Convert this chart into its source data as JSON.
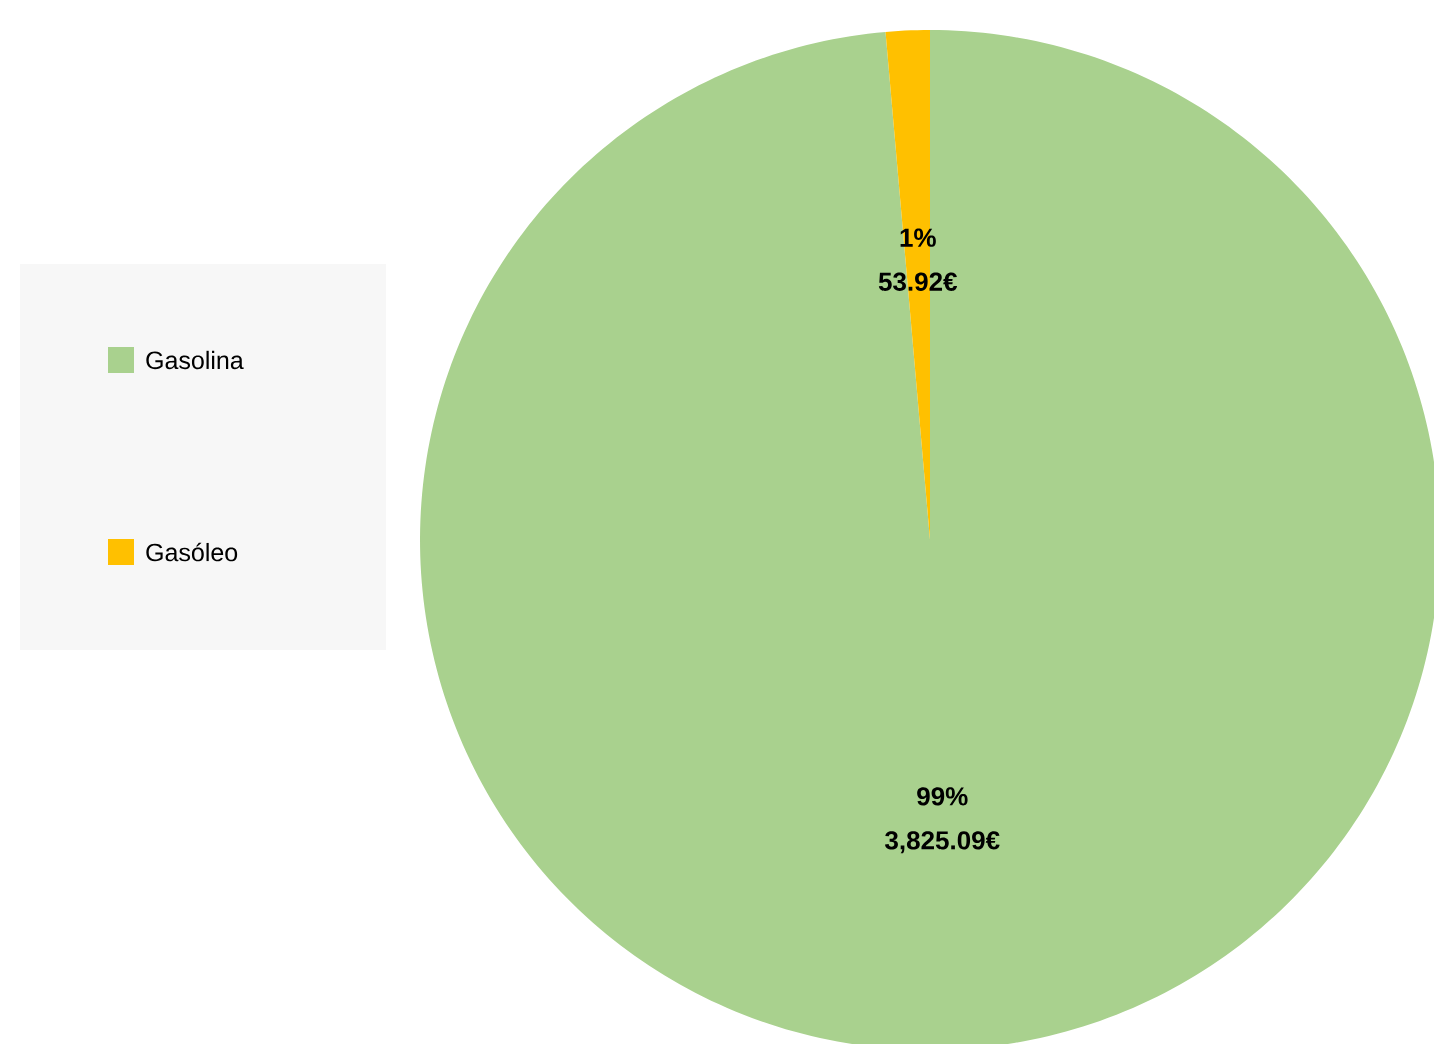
{
  "chart_data": {
    "type": "pie",
    "categories": [
      "Gasolina",
      "Gasóleo"
    ],
    "values": [
      3825.09,
      53.92
    ],
    "colors": [
      "#a9d18e",
      "#ffc000"
    ],
    "value_labels": [
      "3,825.09€",
      "53.92€"
    ],
    "annotations": [
      "99%",
      "1%"
    ],
    "legend": "left"
  }
}
